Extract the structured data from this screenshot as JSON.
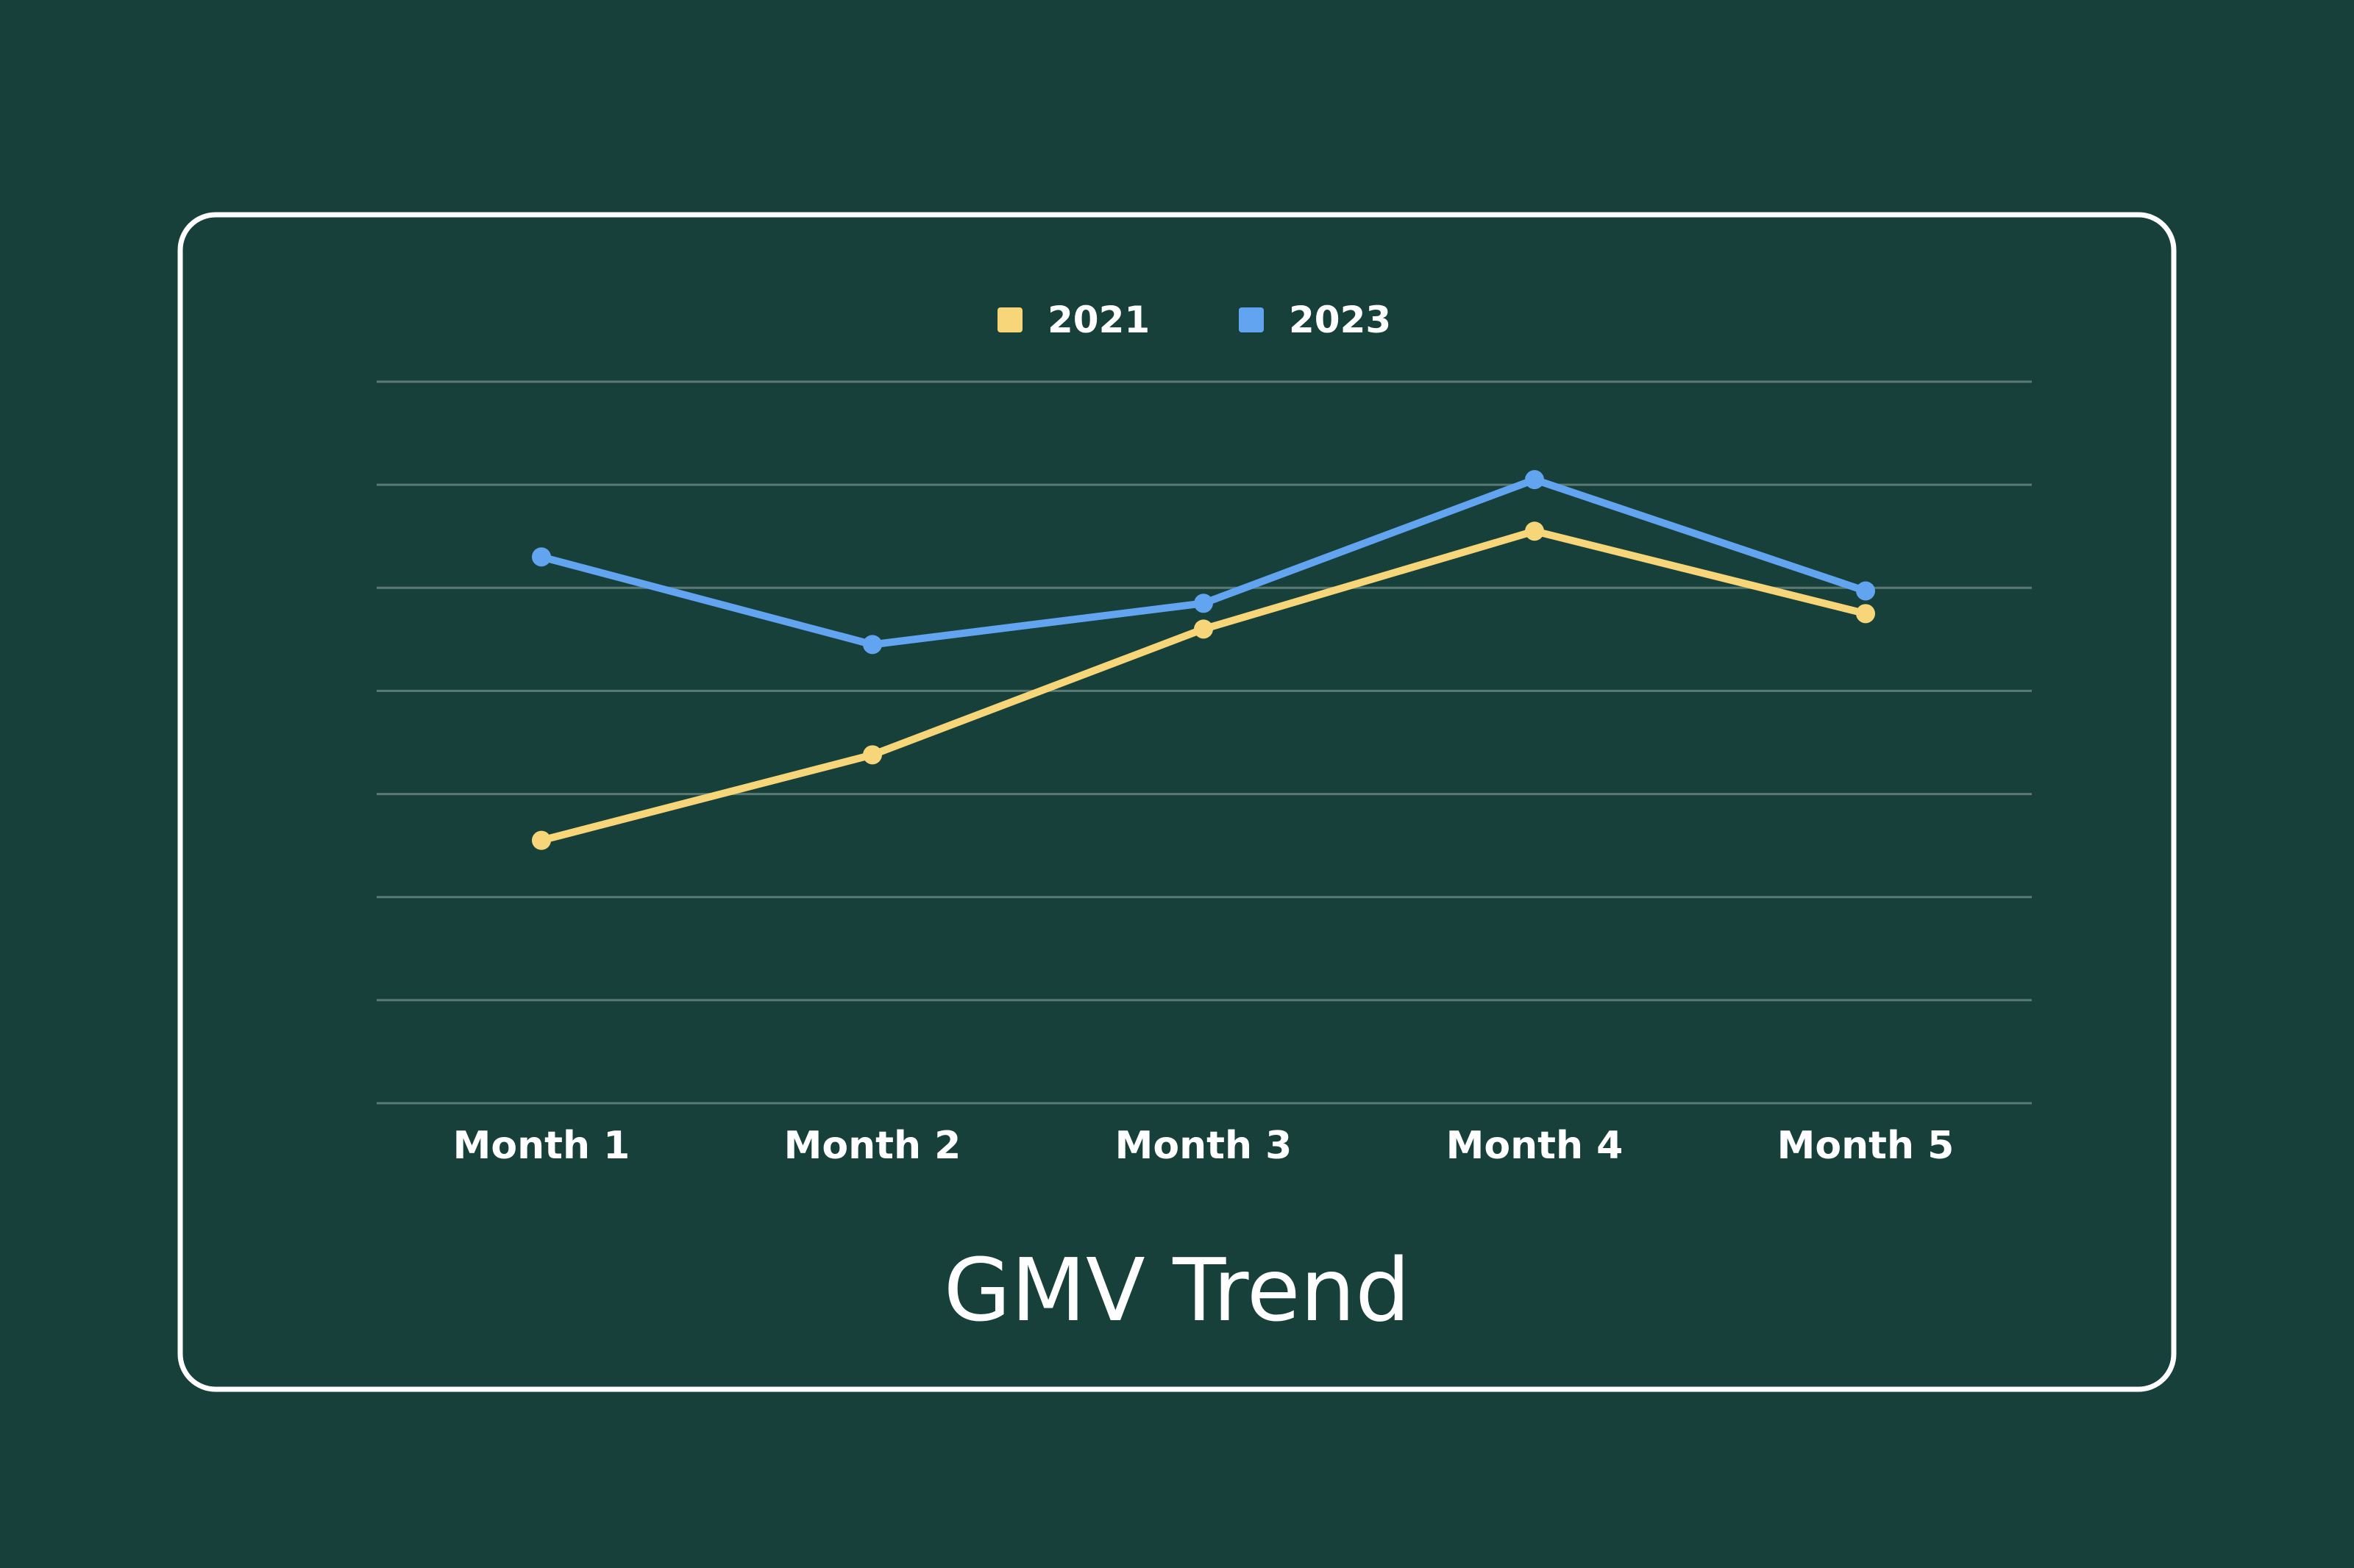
{
  "colors": {
    "background": "#17403a",
    "frame": "#ffffff",
    "gridline": "#5b7a74",
    "series_2021": "#f7d67a",
    "series_2023": "#63a4f0"
  },
  "chart_data": {
    "type": "line",
    "title": "GMV Trend",
    "xlabel": "",
    "ylabel": "",
    "categories": [
      "Month 1",
      "Month 2",
      "Month 3",
      "Month 4",
      "Month 5"
    ],
    "ylim": [
      0,
      7
    ],
    "grid": true,
    "legend_position": "top-center",
    "series": [
      {
        "name": "2021",
        "values": [
          2.55,
          3.38,
          4.6,
          5.55,
          4.75
        ],
        "color": "#f7d67a"
      },
      {
        "name": "2023",
        "values": [
          5.3,
          4.45,
          4.85,
          6.05,
          4.97
        ],
        "color": "#63a4f0"
      }
    ]
  }
}
